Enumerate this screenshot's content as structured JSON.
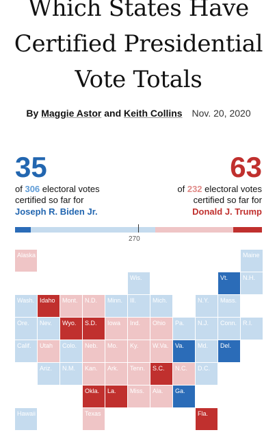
{
  "headline": {
    "line1": "Which States Have",
    "line2": "Certified Presidential",
    "line3": "Vote Totals"
  },
  "byline": {
    "by": "By",
    "author1": "Maggie Astor",
    "and": "and",
    "author2": "Keith Collins",
    "date": "Nov. 20, 2020"
  },
  "biden": {
    "count": "35",
    "of_text": "of",
    "total": "306",
    "desc1": "electoral votes",
    "desc2": "certified so far for",
    "name": "Joseph R. Biden Jr."
  },
  "trump": {
    "count": "63",
    "of_text": "of",
    "total": "232",
    "desc1": "electoral votes",
    "desc2": "certified so far for",
    "name": "Donald J. Trump"
  },
  "progress": {
    "total_votes": 538,
    "biden_certified": 35,
    "biden_total": 306,
    "trump_certified": 63,
    "trump_total": 232,
    "threshold_label": "270"
  },
  "colors": {
    "dem_certified": "#2b6cb8",
    "dem_pending": "#c5dbee",
    "rep_certified": "#c0302e",
    "rep_pending": "#efc5c6",
    "empty": "#ffffff"
  },
  "states": [
    {
      "label": "Alaska",
      "status": "rep_pending"
    },
    {
      "label": "Maine",
      "status": "dem_pending"
    },
    {
      "label": "Wis.",
      "status": "dem_pending"
    },
    {
      "label": "Vt.",
      "status": "dem_certified"
    },
    {
      "label": "N.H.",
      "status": "dem_pending"
    },
    {
      "label": "Wash.",
      "status": "dem_pending"
    },
    {
      "label": "Idaho",
      "status": "rep_certified"
    },
    {
      "label": "Mont.",
      "status": "rep_pending"
    },
    {
      "label": "N.D.",
      "status": "rep_pending"
    },
    {
      "label": "Minn.",
      "status": "dem_pending"
    },
    {
      "label": "Ill.",
      "status": "dem_pending"
    },
    {
      "label": "Mich.",
      "status": "dem_pending"
    },
    {
      "label": "N.Y.",
      "status": "dem_pending"
    },
    {
      "label": "Mass.",
      "status": "dem_pending"
    },
    {
      "label": "Ore.",
      "status": "dem_pending"
    },
    {
      "label": "Nev.",
      "status": "dem_pending"
    },
    {
      "label": "Wyo.",
      "status": "rep_certified"
    },
    {
      "label": "S.D.",
      "status": "rep_certified"
    },
    {
      "label": "Iowa",
      "status": "rep_pending"
    },
    {
      "label": "Ind.",
      "status": "rep_pending"
    },
    {
      "label": "Ohio",
      "status": "rep_pending"
    },
    {
      "label": "Pa.",
      "status": "dem_pending"
    },
    {
      "label": "N.J.",
      "status": "dem_pending"
    },
    {
      "label": "Conn.",
      "status": "dem_pending"
    },
    {
      "label": "R.I.",
      "status": "dem_pending"
    },
    {
      "label": "Calif.",
      "status": "dem_pending"
    },
    {
      "label": "Utah",
      "status": "rep_pending"
    },
    {
      "label": "Colo.",
      "status": "dem_pending"
    },
    {
      "label": "Neb.",
      "status": "rep_pending"
    },
    {
      "label": "Mo.",
      "status": "rep_pending"
    },
    {
      "label": "Ky.",
      "status": "rep_pending"
    },
    {
      "label": "W.Va.",
      "status": "rep_pending"
    },
    {
      "label": "Va.",
      "status": "dem_certified"
    },
    {
      "label": "Md.",
      "status": "dem_pending"
    },
    {
      "label": "Del.",
      "status": "dem_certified"
    },
    {
      "label": "Ariz.",
      "status": "dem_pending"
    },
    {
      "label": "N.M.",
      "status": "dem_pending"
    },
    {
      "label": "Kan.",
      "status": "rep_pending"
    },
    {
      "label": "Ark.",
      "status": "rep_pending"
    },
    {
      "label": "Tenn.",
      "status": "rep_pending"
    },
    {
      "label": "S.C.",
      "status": "rep_certified"
    },
    {
      "label": "N.C.",
      "status": "rep_pending"
    },
    {
      "label": "D.C.",
      "status": "dem_pending"
    },
    {
      "label": "Okla.",
      "status": "rep_certified"
    },
    {
      "label": "La.",
      "status": "rep_certified"
    },
    {
      "label": "Miss.",
      "status": "rep_pending"
    },
    {
      "label": "Ala.",
      "status": "rep_pending"
    },
    {
      "label": "Ga.",
      "status": "dem_certified"
    },
    {
      "label": "Hawaii",
      "status": "dem_pending"
    },
    {
      "label": "Texas",
      "status": "rep_pending"
    },
    {
      "label": "Fla.",
      "status": "rep_certified"
    }
  ]
}
